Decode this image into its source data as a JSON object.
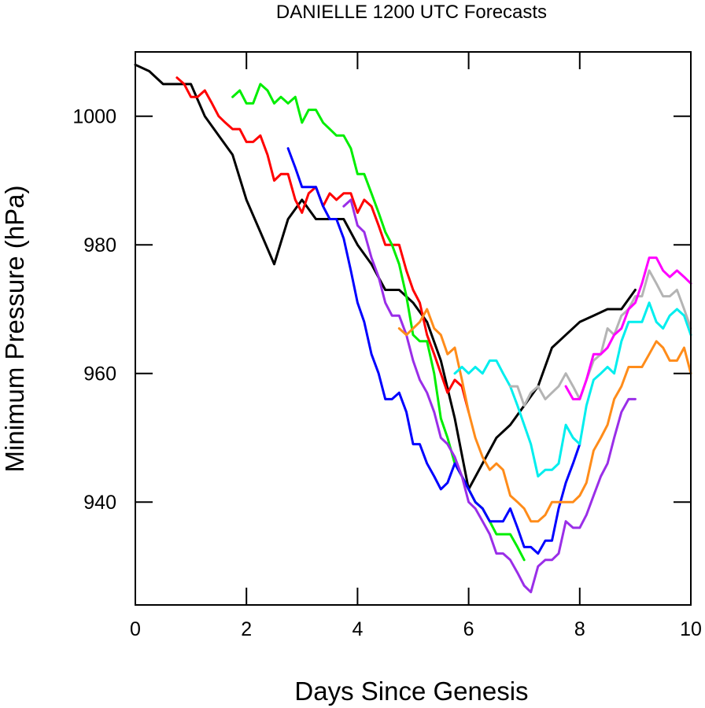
{
  "chart_data": {
    "type": "line",
    "title": "DANIELLE 1200 UTC Forecasts",
    "xlabel": "Days Since Genesis",
    "ylabel": "Minimum Pressure (hPa)",
    "xlim": [
      0,
      10
    ],
    "ylim": [
      924,
      1010
    ],
    "xticks": [
      0,
      2,
      4,
      6,
      8,
      10
    ],
    "xtick_labels": [
      "0",
      "2",
      "4",
      "6",
      "8",
      "10"
    ],
    "yticks": [
      940,
      960,
      980,
      1000
    ],
    "ytick_labels": [
      "940",
      "960",
      "980",
      "1000"
    ],
    "grid": false,
    "legend": "none",
    "series": [
      {
        "color": "#000000",
        "x": [
          0,
          0.25,
          0.5,
          0.75,
          1.0,
          1.25,
          1.5,
          1.75,
          2.0,
          2.25,
          2.5,
          2.75,
          3.0,
          3.25,
          3.5,
          3.75,
          4.0,
          4.25,
          4.5,
          4.75,
          5.0,
          5.25,
          5.5,
          5.75,
          6.0,
          6.25,
          6.5,
          6.75,
          7.0,
          7.25,
          7.5,
          7.75,
          8.0,
          8.25,
          8.5,
          8.75,
          9.0
        ],
        "y": [
          1008,
          1007,
          1005,
          1005,
          1005,
          1000,
          997,
          994,
          987,
          982,
          977,
          984,
          987,
          984,
          984,
          984,
          980,
          977,
          973,
          973,
          971,
          968,
          962,
          953,
          942,
          946,
          950,
          952,
          955,
          958,
          964,
          966,
          968,
          969,
          970,
          970,
          973
        ]
      },
      {
        "color": "#ff0000",
        "x": [
          0.75,
          0.88,
          1.0,
          1.12,
          1.25,
          1.38,
          1.5,
          1.62,
          1.75,
          1.88,
          2.0,
          2.12,
          2.25,
          2.38,
          2.5,
          2.62,
          2.75,
          2.88,
          3.0,
          3.12,
          3.25,
          3.38,
          3.5,
          3.62,
          3.75,
          3.88,
          4.0,
          4.12,
          4.25,
          4.38,
          4.5,
          4.62,
          4.75,
          4.88,
          5.0,
          5.12,
          5.25,
          5.38,
          5.5,
          5.62,
          5.75,
          5.88,
          6.0
        ],
        "y": [
          1006,
          1005,
          1003,
          1003,
          1004,
          1002,
          1000,
          999,
          998,
          998,
          996,
          996,
          997,
          994,
          990,
          991,
          991,
          987,
          985,
          988,
          989,
          986,
          988,
          987,
          988,
          988,
          985,
          987,
          986,
          983,
          980,
          980,
          980,
          976,
          973,
          971,
          966,
          963,
          960,
          957,
          959,
          958,
          954
        ]
      },
      {
        "color": "#00ee00",
        "x": [
          1.75,
          1.88,
          2.0,
          2.12,
          2.25,
          2.38,
          2.5,
          2.62,
          2.75,
          2.88,
          3.0,
          3.12,
          3.25,
          3.38,
          3.5,
          3.62,
          3.75,
          3.88,
          4.0,
          4.12,
          4.25,
          4.38,
          4.5,
          4.62,
          4.75,
          4.88,
          5.0,
          5.12,
          5.25,
          5.38,
          5.5,
          5.62,
          5.75,
          5.88,
          6.0,
          6.12,
          6.25,
          6.38,
          6.5,
          6.62,
          6.75,
          6.88,
          7.0
        ],
        "y": [
          1003,
          1004,
          1002,
          1002,
          1005,
          1004,
          1002,
          1003,
          1002,
          1003,
          999,
          1001,
          1001,
          999,
          998,
          997,
          997,
          995,
          991,
          991,
          988,
          985,
          982,
          980,
          977,
          972,
          966,
          965,
          965,
          960,
          953,
          950,
          946,
          944,
          942,
          940,
          939,
          937,
          935,
          935,
          935,
          933,
          931
        ]
      },
      {
        "color": "#0000ff",
        "x": [
          2.75,
          2.88,
          3.0,
          3.12,
          3.25,
          3.38,
          3.5,
          3.62,
          3.75,
          3.88,
          4.0,
          4.12,
          4.25,
          4.38,
          4.5,
          4.62,
          4.75,
          4.88,
          5.0,
          5.12,
          5.25,
          5.38,
          5.5,
          5.62,
          5.75,
          5.88,
          6.0,
          6.12,
          6.25,
          6.38,
          6.5,
          6.62,
          6.75,
          6.88,
          7.0,
          7.12,
          7.25,
          7.38,
          7.5,
          7.62,
          7.75,
          7.88,
          8.0
        ],
        "y": [
          995,
          992,
          989,
          989,
          989,
          986,
          984,
          984,
          981,
          976,
          971,
          968,
          963,
          960,
          956,
          956,
          957,
          954,
          949,
          949,
          946,
          944,
          942,
          943,
          946,
          944,
          942,
          940,
          939,
          937,
          937,
          937,
          939,
          936,
          933,
          933,
          932,
          934,
          934,
          939,
          943,
          946,
          949
        ]
      },
      {
        "color": "#9a2ee8",
        "x": [
          3.75,
          3.88,
          4.0,
          4.12,
          4.25,
          4.38,
          4.5,
          4.62,
          4.75,
          4.88,
          5.0,
          5.12,
          5.25,
          5.38,
          5.5,
          5.62,
          5.75,
          5.88,
          6.0,
          6.12,
          6.25,
          6.38,
          6.5,
          6.62,
          6.75,
          6.88,
          7.0,
          7.12,
          7.25,
          7.38,
          7.5,
          7.62,
          7.75,
          7.88,
          8.0,
          8.12,
          8.25,
          8.38,
          8.5,
          8.62,
          8.75,
          8.88,
          9.0
        ],
        "y": [
          986,
          987,
          983,
          982,
          978,
          975,
          971,
          969,
          969,
          966,
          962,
          959,
          957,
          954,
          950,
          949,
          947,
          944,
          940,
          939,
          937,
          935,
          932,
          932,
          931,
          929,
          927,
          926,
          930,
          931,
          931,
          932,
          937,
          936,
          936,
          938,
          941,
          944,
          946,
          950,
          954,
          956,
          956
        ]
      },
      {
        "color": "#ff8c1a",
        "x": [
          4.75,
          4.88,
          5.0,
          5.12,
          5.25,
          5.38,
          5.5,
          5.62,
          5.75,
          5.88,
          6.0,
          6.12,
          6.25,
          6.38,
          6.5,
          6.62,
          6.75,
          6.88,
          7.0,
          7.12,
          7.25,
          7.38,
          7.5,
          7.62,
          7.75,
          7.88,
          8.0,
          8.12,
          8.25,
          8.38,
          8.5,
          8.62,
          8.75,
          8.88,
          9.0,
          9.12,
          9.25,
          9.38,
          9.5,
          9.62,
          9.75,
          9.88,
          10.0
        ],
        "y": [
          967,
          966,
          967,
          968,
          970,
          967,
          966,
          963,
          964,
          959,
          954,
          950,
          947,
          945,
          946,
          945,
          941,
          940,
          939,
          937,
          937,
          938,
          940,
          940,
          940,
          940,
          941,
          943,
          948,
          950,
          952,
          956,
          958,
          961,
          961,
          961,
          963,
          965,
          964,
          962,
          962,
          964,
          960
        ]
      },
      {
        "color": "#00eeee",
        "x": [
          5.75,
          5.88,
          6.0,
          6.12,
          6.25,
          6.38,
          6.5,
          6.62,
          6.75,
          6.88,
          7.0,
          7.12,
          7.25,
          7.38,
          7.5,
          7.62,
          7.75,
          7.88,
          8.0,
          8.12,
          8.25,
          8.38,
          8.5,
          8.62,
          8.75,
          8.88,
          9.0,
          9.12,
          9.25,
          9.38,
          9.5,
          9.62,
          9.75,
          9.88,
          10.0
        ],
        "y": [
          960,
          961,
          960,
          961,
          960,
          962,
          962,
          960,
          958,
          955,
          952,
          949,
          944,
          945,
          945,
          946,
          952,
          950,
          949,
          955,
          959,
          960,
          961,
          960,
          965,
          968,
          968,
          968,
          971,
          968,
          967,
          969,
          970,
          969,
          966
        ]
      },
      {
        "color": "#b4b4b4",
        "x": [
          6.75,
          6.88,
          7.0,
          7.12,
          7.25,
          7.38,
          7.5,
          7.62,
          7.75,
          7.88,
          8.0,
          8.12,
          8.25,
          8.38,
          8.5,
          8.62,
          8.75,
          8.88,
          9.0,
          9.12,
          9.25,
          9.38,
          9.5,
          9.62,
          9.75,
          9.88,
          10.0
        ],
        "y": [
          958,
          958,
          955,
          957,
          958,
          956,
          957,
          958,
          960,
          958,
          956,
          959,
          962,
          963,
          967,
          966,
          969,
          970,
          972,
          972,
          976,
          974,
          972,
          972,
          973,
          970,
          967
        ]
      },
      {
        "color": "#ff00ff",
        "x": [
          7.75,
          7.88,
          8.0,
          8.12,
          8.25,
          8.38,
          8.5,
          8.62,
          8.75,
          8.88,
          9.0,
          9.12,
          9.25,
          9.38,
          9.5,
          9.62,
          9.75,
          9.88,
          10.0
        ],
        "y": [
          958,
          956,
          956,
          959,
          963,
          963,
          964,
          966,
          967,
          970,
          971,
          974,
          978,
          978,
          976,
          975,
          976,
          975,
          974
        ]
      }
    ]
  }
}
